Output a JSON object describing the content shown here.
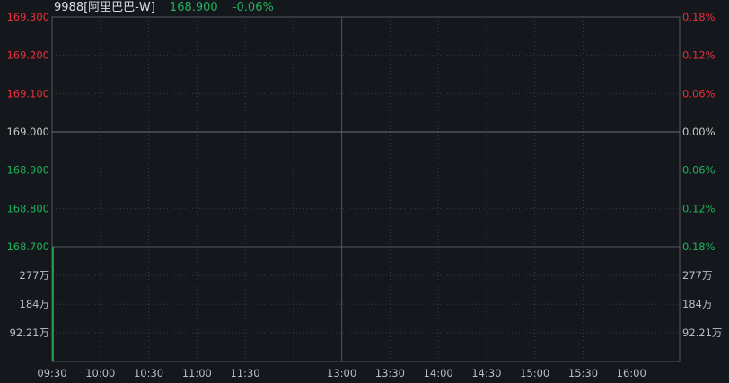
{
  "header": {
    "symbol": "9988[阿里巴巴-W]",
    "price": "168.900",
    "change_pct": "-0.06%"
  },
  "colors": {
    "background": "#14171c",
    "up": "#e8303a",
    "down": "#1fb25a",
    "neutral": "#c8c8c8",
    "grid": "#3a3d44",
    "axis": "#55585f"
  },
  "chart_data": [
    {
      "type": "line",
      "panel": "price",
      "x_ticks": [
        "09:30",
        "10:00",
        "10:30",
        "11:00",
        "11:30",
        "13:00",
        "13:30",
        "14:00",
        "14:30",
        "15:00",
        "15:30",
        "16:00"
      ],
      "ylim": [
        168.7,
        169.3
      ],
      "reference_price": 169.0,
      "left_ticks": [
        {
          "label": "169.300",
          "value": 169.3,
          "trend": "up"
        },
        {
          "label": "169.200",
          "value": 169.2,
          "trend": "up"
        },
        {
          "label": "169.100",
          "value": 169.1,
          "trend": "up"
        },
        {
          "label": "169.000",
          "value": 169.0,
          "trend": "flat"
        },
        {
          "label": "168.900",
          "value": 168.9,
          "trend": "down"
        },
        {
          "label": "168.800",
          "value": 168.8,
          "trend": "down"
        },
        {
          "label": "168.700",
          "value": 168.7,
          "trend": "down"
        }
      ],
      "right_ticks": [
        "0.18%",
        "0.12%",
        "0.06%",
        "0.00%",
        "0.06%",
        "0.12%",
        "0.18%"
      ],
      "grid": true
    },
    {
      "type": "bar",
      "panel": "volume",
      "volume_ticks": [
        {
          "label": "277万",
          "value": 277
        },
        {
          "label": "184万",
          "value": 184
        },
        {
          "label": "92.21万",
          "value": 92.21
        }
      ],
      "ylim": [
        0,
        368.8
      ],
      "bars": [
        {
          "x": "09:30",
          "value": 368.8,
          "trend": "down"
        }
      ],
      "unit": "万"
    }
  ]
}
